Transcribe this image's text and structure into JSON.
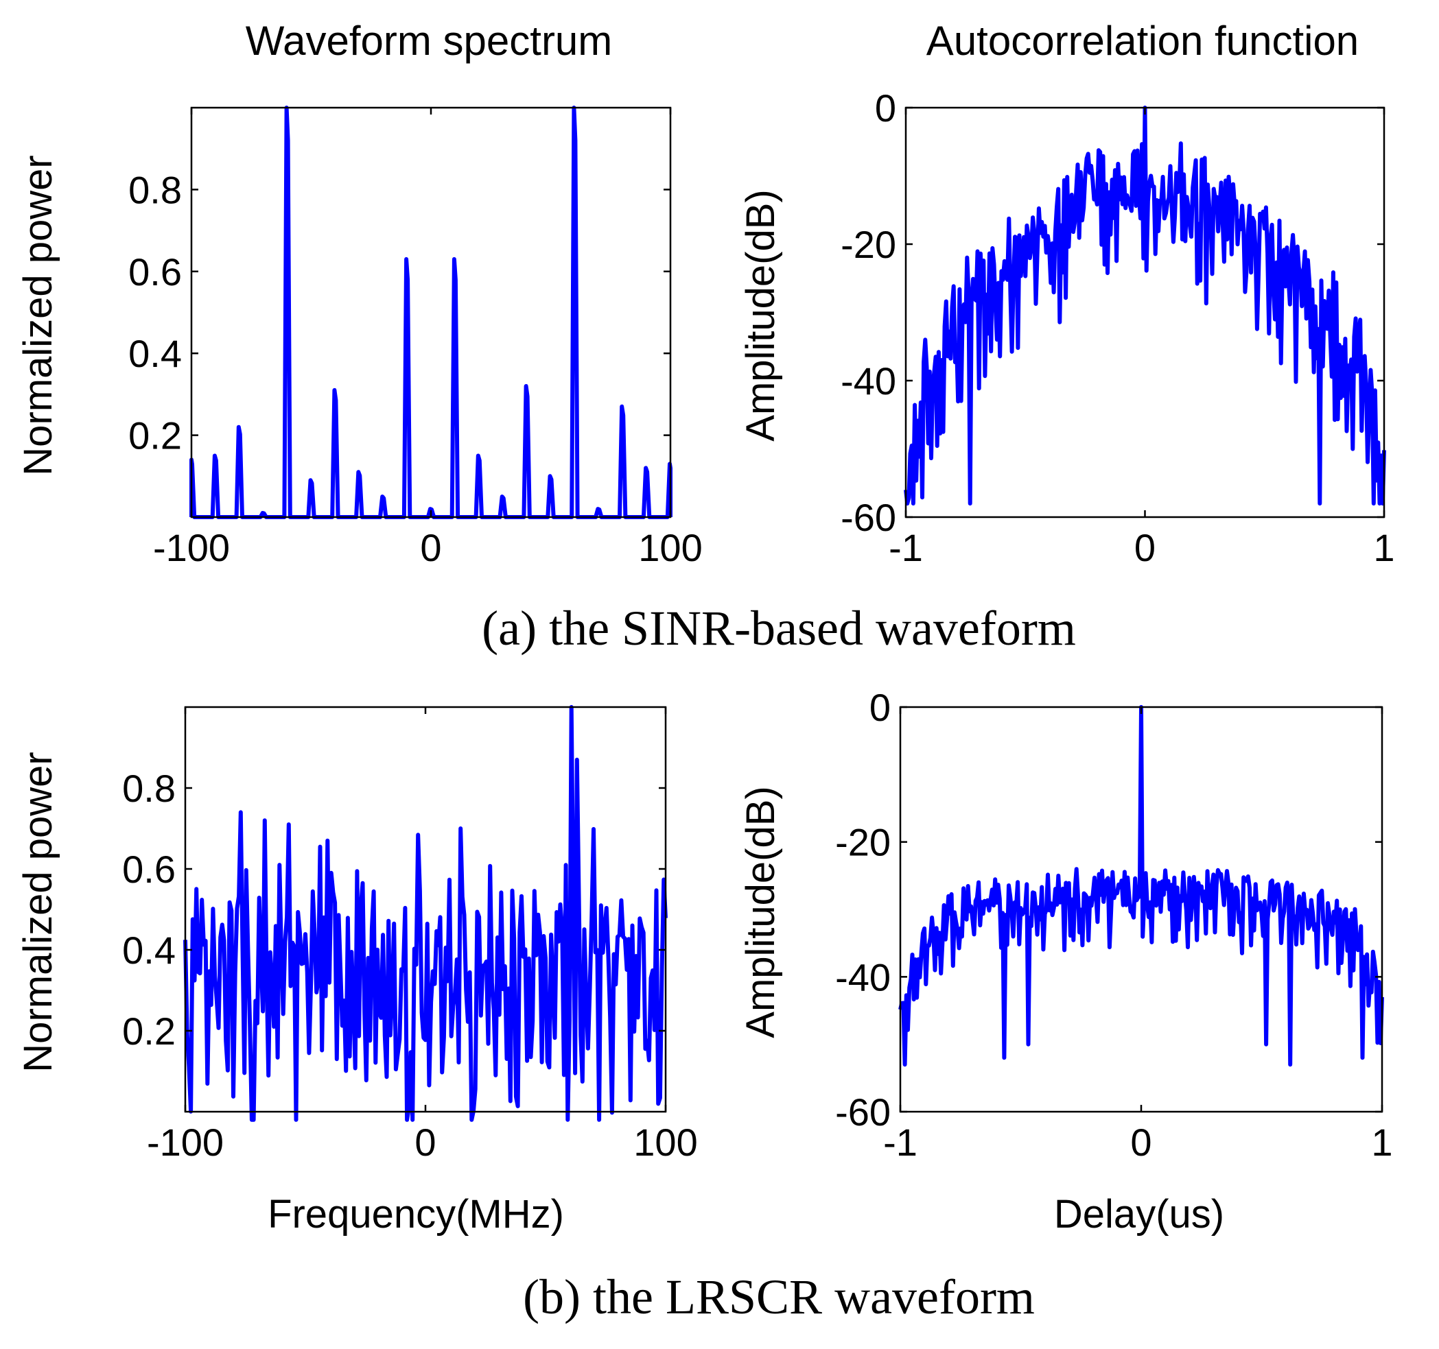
{
  "figure": {
    "caption_a": "(a)  the SINR-based waveform",
    "caption_b": "(b)  the LRSCR waveform"
  },
  "colors": {
    "series": "#0000ff",
    "axes": "#000000",
    "background": "#ffffff"
  },
  "chart_data": [
    {
      "id": "a-spectrum",
      "type": "line",
      "title": "Waveform spectrum",
      "xlabel": "",
      "ylabel": "Normalized power",
      "xlim": [
        -100,
        100
      ],
      "ylim": [
        0,
        1
      ],
      "xticks": [
        -100,
        0,
        100
      ],
      "xtick_labels": [
        "-100",
        "0",
        "100"
      ],
      "yticks": [
        0.2,
        0.4,
        0.6,
        0.8
      ],
      "ytick_labels": [
        "0.2",
        "0.4",
        "0.6",
        "0.8"
      ],
      "grid": false,
      "style": "line_spectrum",
      "peaks": [
        [
          -100,
          0.14
        ],
        [
          -90,
          0.15
        ],
        [
          -80,
          0.22
        ],
        [
          -70,
          0.01
        ],
        [
          -60,
          1.0
        ],
        [
          -50,
          0.09
        ],
        [
          -40,
          0.31
        ],
        [
          -30,
          0.11
        ],
        [
          -20,
          0.05
        ],
        [
          -10,
          0.63
        ],
        [
          0,
          0.02
        ],
        [
          10,
          0.63
        ],
        [
          20,
          0.15
        ],
        [
          30,
          0.05
        ],
        [
          40,
          0.32
        ],
        [
          50,
          0.1
        ],
        [
          60,
          1.0
        ],
        [
          70,
          0.02
        ],
        [
          80,
          0.27
        ],
        [
          90,
          0.12
        ],
        [
          100,
          0.13
        ]
      ]
    },
    {
      "id": "a-autocorr",
      "type": "line",
      "title": "Autocorrelation function",
      "xlabel": "",
      "ylabel": "Amplitude(dB)",
      "xlim": [
        -1,
        1
      ],
      "ylim": [
        -60,
        0
      ],
      "xticks": [
        -1,
        0,
        1
      ],
      "xtick_labels": [
        "-1",
        "0",
        "1"
      ],
      "yticks": [
        0,
        -20,
        -40,
        -60
      ],
      "ytick_labels": [
        "0",
        "-20",
        "-40",
        "-60"
      ],
      "grid": false,
      "style": "sidelobe",
      "mainlobe_db": 0,
      "envelope": [
        [
          -1,
          -48
        ],
        [
          -0.9,
          -30
        ],
        [
          -0.75,
          -22
        ],
        [
          -0.5,
          -14
        ],
        [
          -0.25,
          -7
        ],
        [
          0,
          -2
        ],
        [
          0.25,
          -7
        ],
        [
          0.5,
          -14
        ],
        [
          0.75,
          -22
        ],
        [
          0.9,
          -30
        ],
        [
          1,
          -48
        ]
      ],
      "ripple_db": 22,
      "notches": [
        [
          -0.73,
          -58
        ],
        [
          0.73,
          -58
        ]
      ]
    },
    {
      "id": "b-spectrum",
      "type": "line",
      "title": "",
      "xlabel": "Frequency(MHz)",
      "ylabel": "Normalized power",
      "xlim": [
        -100,
        100
      ],
      "ylim": [
        0,
        1
      ],
      "xticks": [
        -100,
        0,
        100
      ],
      "xtick_labels": [
        "-100",
        "0",
        "100"
      ],
      "yticks": [
        0.2,
        0.4,
        0.6,
        0.8
      ],
      "ytick_labels": [
        "0.2",
        "0.4",
        "0.6",
        "0.8"
      ],
      "grid": false,
      "style": "noisy",
      "mean": 0.3,
      "spread": 0.42,
      "spikes": [
        [
          61,
          1.0
        ],
        [
          63,
          0.87
        ],
        [
          -77,
          0.74
        ],
        [
          -67,
          0.72
        ],
        [
          -57,
          0.71
        ],
        [
          15,
          0.7
        ]
      ]
    },
    {
      "id": "b-autocorr",
      "type": "line",
      "title": "",
      "xlabel": "Delay(us)",
      "ylabel": "Amplitude(dB)",
      "xlim": [
        -1,
        1
      ],
      "ylim": [
        -60,
        0
      ],
      "xticks": [
        -1,
        0,
        1
      ],
      "xtick_labels": [
        "-1",
        "0",
        "1"
      ],
      "yticks": [
        0,
        -20,
        -40,
        -60
      ],
      "ytick_labels": [
        "0",
        "-20",
        "-40",
        "-60"
      ],
      "grid": false,
      "style": "sidelobe",
      "mainlobe_db": 0,
      "envelope": [
        [
          -1,
          -40
        ],
        [
          -0.9,
          -30
        ],
        [
          -0.7,
          -26
        ],
        [
          -0.3,
          -24
        ],
        [
          0,
          -24
        ],
        [
          0.3,
          -24
        ],
        [
          0.7,
          -26
        ],
        [
          0.9,
          -30
        ],
        [
          1,
          -40
        ]
      ],
      "ripple_db": 12,
      "notches": [
        [
          -0.98,
          -53
        ],
        [
          -0.57,
          -52
        ],
        [
          -0.47,
          -50
        ],
        [
          0.52,
          -50
        ],
        [
          0.62,
          -53
        ],
        [
          0.92,
          -52
        ]
      ]
    }
  ]
}
